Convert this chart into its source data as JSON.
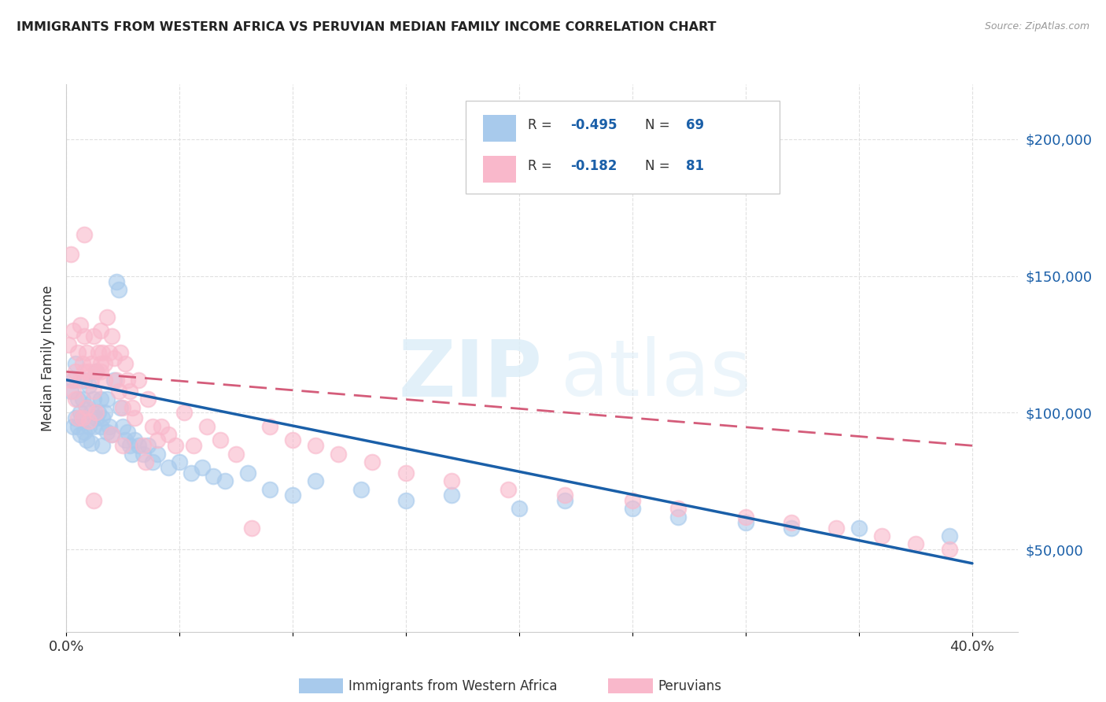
{
  "title": "IMMIGRANTS FROM WESTERN AFRICA VS PERUVIAN MEDIAN FAMILY INCOME CORRELATION CHART",
  "source": "Source: ZipAtlas.com",
  "ylabel": "Median Family Income",
  "xlim": [
    0.0,
    0.42
  ],
  "ylim": [
    20000,
    220000
  ],
  "xticks": [
    0.0,
    0.05,
    0.1,
    0.15,
    0.2,
    0.25,
    0.3,
    0.35,
    0.4
  ],
  "xticklabels": [
    "0.0%",
    "",
    "",
    "",
    "",
    "",
    "",
    "",
    "40.0%"
  ],
  "yticks_right": [
    50000,
    100000,
    150000,
    200000
  ],
  "ytick_labels_right": [
    "$50,000",
    "$100,000",
    "$150,000",
    "$200,000"
  ],
  "blue_R": "-0.495",
  "blue_N": "69",
  "pink_R": "-0.182",
  "pink_N": "81",
  "blue_color": "#a8caec",
  "pink_color": "#f9b8cb",
  "blue_line_color": "#1a5fa8",
  "pink_line_color": "#d45c7a",
  "legend_label_blue": "Immigrants from Western Africa",
  "legend_label_pink": "Peruvians",
  "blue_points_x": [
    0.002,
    0.003,
    0.003,
    0.004,
    0.004,
    0.005,
    0.005,
    0.006,
    0.006,
    0.007,
    0.007,
    0.008,
    0.008,
    0.009,
    0.009,
    0.01,
    0.01,
    0.011,
    0.011,
    0.012,
    0.012,
    0.013,
    0.013,
    0.014,
    0.015,
    0.015,
    0.016,
    0.016,
    0.017,
    0.018,
    0.018,
    0.019,
    0.02,
    0.021,
    0.022,
    0.023,
    0.024,
    0.025,
    0.026,
    0.027,
    0.028,
    0.029,
    0.03,
    0.032,
    0.034,
    0.036,
    0.038,
    0.04,
    0.045,
    0.05,
    0.055,
    0.06,
    0.065,
    0.07,
    0.08,
    0.09,
    0.1,
    0.11,
    0.13,
    0.15,
    0.17,
    0.2,
    0.22,
    0.25,
    0.27,
    0.3,
    0.32,
    0.35,
    0.39
  ],
  "blue_points_y": [
    108000,
    95000,
    112000,
    98000,
    118000,
    105000,
    95000,
    100000,
    92000,
    105000,
    98000,
    112000,
    93000,
    102000,
    90000,
    110000,
    95000,
    100000,
    89000,
    105000,
    95000,
    98000,
    115000,
    100000,
    105000,
    95000,
    98000,
    88000,
    100000,
    93000,
    105000,
    95000,
    92000,
    112000,
    148000,
    145000,
    102000,
    95000,
    90000,
    93000,
    88000,
    85000,
    90000,
    88000,
    85000,
    88000,
    82000,
    85000,
    80000,
    82000,
    78000,
    80000,
    77000,
    75000,
    78000,
    72000,
    70000,
    75000,
    72000,
    68000,
    70000,
    65000,
    68000,
    65000,
    62000,
    60000,
    58000,
    58000,
    55000
  ],
  "pink_points_x": [
    0.001,
    0.002,
    0.002,
    0.003,
    0.003,
    0.004,
    0.004,
    0.005,
    0.005,
    0.006,
    0.006,
    0.007,
    0.007,
    0.008,
    0.008,
    0.009,
    0.009,
    0.01,
    0.01,
    0.011,
    0.011,
    0.012,
    0.012,
    0.013,
    0.013,
    0.014,
    0.015,
    0.015,
    0.016,
    0.017,
    0.017,
    0.018,
    0.019,
    0.02,
    0.021,
    0.022,
    0.023,
    0.024,
    0.025,
    0.026,
    0.027,
    0.028,
    0.029,
    0.03,
    0.032,
    0.034,
    0.036,
    0.038,
    0.04,
    0.042,
    0.045,
    0.048,
    0.052,
    0.056,
    0.062,
    0.068,
    0.075,
    0.082,
    0.09,
    0.1,
    0.11,
    0.12,
    0.135,
    0.15,
    0.17,
    0.195,
    0.22,
    0.25,
    0.27,
    0.3,
    0.32,
    0.34,
    0.36,
    0.375,
    0.39,
    0.008,
    0.035,
    0.025,
    0.015,
    0.02,
    0.012
  ],
  "pink_points_y": [
    125000,
    158000,
    112000,
    130000,
    108000,
    115000,
    105000,
    122000,
    98000,
    132000,
    112000,
    118000,
    98000,
    128000,
    115000,
    122000,
    102000,
    115000,
    97000,
    118000,
    112000,
    108000,
    128000,
    115000,
    100000,
    122000,
    118000,
    130000,
    122000,
    112000,
    118000,
    135000,
    122000,
    128000,
    120000,
    112000,
    108000,
    122000,
    102000,
    118000,
    112000,
    108000,
    102000,
    98000,
    112000,
    88000,
    105000,
    95000,
    90000,
    95000,
    92000,
    88000,
    100000,
    88000,
    95000,
    90000,
    85000,
    58000,
    95000,
    90000,
    88000,
    85000,
    82000,
    78000,
    75000,
    72000,
    70000,
    68000,
    65000,
    62000,
    60000,
    58000,
    55000,
    52000,
    50000,
    165000,
    82000,
    88000,
    115000,
    92000,
    68000
  ],
  "blue_trend_x": [
    0.0,
    0.4
  ],
  "blue_trend_y": [
    112000,
    45000
  ],
  "pink_trend_x": [
    0.0,
    0.4
  ],
  "pink_trend_y": [
    115000,
    88000
  ],
  "background_color": "#ffffff",
  "grid_color": "#e0e0e0",
  "number_color": "#1a5fa8"
}
